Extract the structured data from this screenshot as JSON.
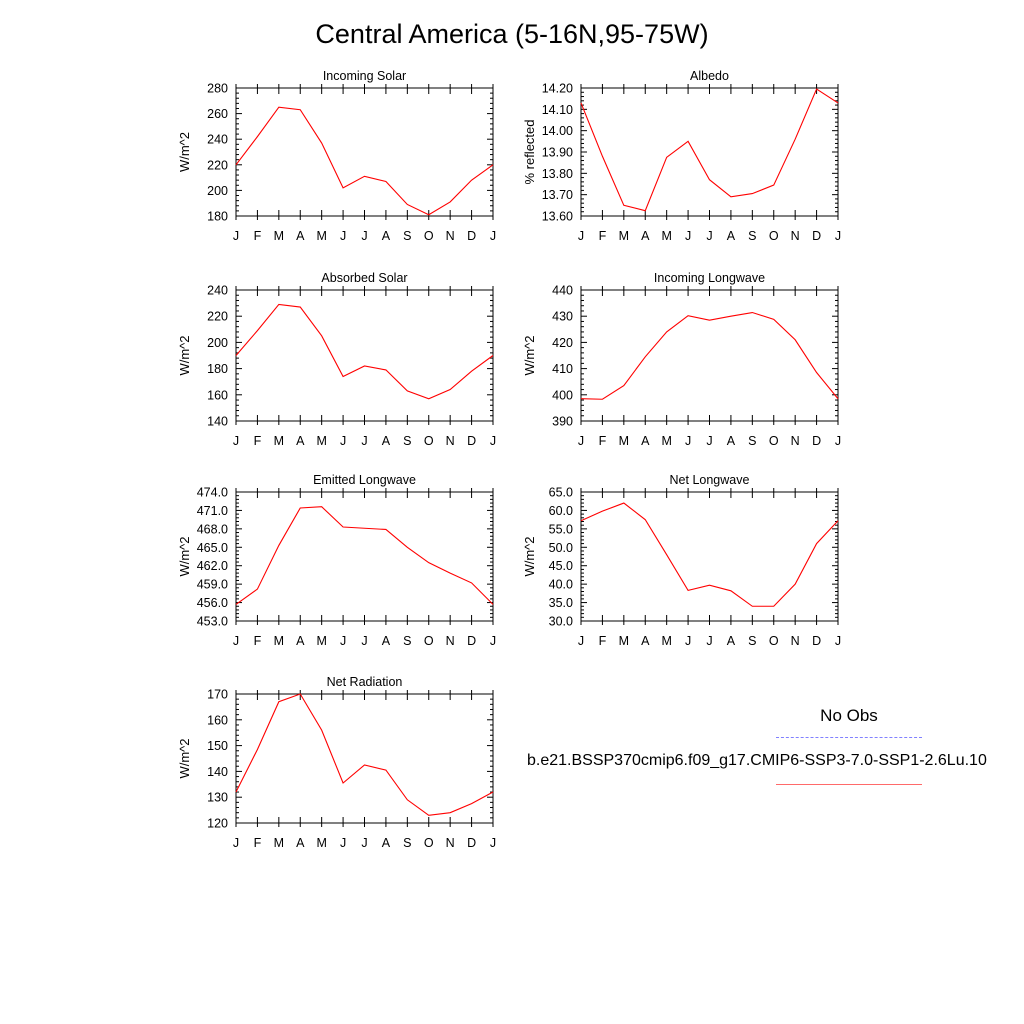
{
  "page": {
    "title": "Central America (5-16N,95-75W)"
  },
  "legend": {
    "obs_label": "No Obs",
    "obs_color": "#8080ff",
    "model_label": "b.e21.BSSP370cmip6.f09_g17.CMIP6-SSP3-7.0-SSP1-2.6Lu.10",
    "model_color": "#ff0000"
  },
  "chart_data": [
    {
      "type": "line",
      "title": "Incoming Solar",
      "ylabel": "W/m^2",
      "categories": [
        "J",
        "F",
        "M",
        "A",
        "M",
        "J",
        "J",
        "A",
        "S",
        "O",
        "N",
        "D",
        "J"
      ],
      "ylim": [
        180,
        280
      ],
      "yticks": [
        "180",
        "200",
        "220",
        "240",
        "260",
        "280"
      ],
      "series": [
        {
          "color": "#ff0000",
          "values": [
            220,
            242,
            265,
            263,
            237,
            202,
            211,
            207,
            189,
            181,
            191,
            208,
            220
          ]
        }
      ]
    },
    {
      "type": "line",
      "title": "Albedo",
      "ylabel": "% reflected",
      "categories": [
        "J",
        "F",
        "M",
        "A",
        "M",
        "J",
        "J",
        "A",
        "S",
        "O",
        "N",
        "D",
        "J"
      ],
      "ylim": [
        13.6,
        14.2
      ],
      "yticks": [
        "13.60",
        "13.70",
        "13.80",
        "13.90",
        "14.00",
        "14.10",
        "14.20"
      ],
      "series": [
        {
          "color": "#ff0000",
          "values": [
            14.13,
            13.88,
            13.65,
            13.625,
            13.875,
            13.95,
            13.77,
            13.69,
            13.705,
            13.745,
            13.96,
            14.195,
            14.13
          ]
        }
      ]
    },
    {
      "type": "line",
      "title": "Absorbed Solar",
      "ylabel": "W/m^2",
      "categories": [
        "J",
        "F",
        "M",
        "A",
        "M",
        "J",
        "J",
        "A",
        "S",
        "O",
        "N",
        "D",
        "J"
      ],
      "ylim": [
        140,
        240
      ],
      "yticks": [
        "140",
        "160",
        "180",
        "200",
        "220",
        "240"
      ],
      "series": [
        {
          "color": "#ff0000",
          "values": [
            190,
            209,
            229,
            227,
            205,
            174,
            182,
            179,
            163,
            157,
            164,
            178,
            190
          ]
        }
      ]
    },
    {
      "type": "line",
      "title": "Incoming Longwave",
      "ylabel": "W/m^2",
      "categories": [
        "J",
        "F",
        "M",
        "A",
        "M",
        "J",
        "J",
        "A",
        "S",
        "O",
        "N",
        "D",
        "J"
      ],
      "ylim": [
        390,
        440
      ],
      "yticks": [
        "390",
        "400",
        "410",
        "420",
        "430",
        "440"
      ],
      "series": [
        {
          "color": "#ff0000",
          "values": [
            398.5,
            398.3,
            403.5,
            414.5,
            424,
            430.2,
            428.5,
            430,
            431.4,
            428.8,
            421,
            408.5,
            398.5
          ]
        }
      ]
    },
    {
      "type": "line",
      "title": "Emitted Longwave",
      "ylabel": "W/m^2",
      "categories": [
        "J",
        "F",
        "M",
        "A",
        "M",
        "J",
        "J",
        "A",
        "S",
        "O",
        "N",
        "D",
        "J"
      ],
      "ylim": [
        453,
        474
      ],
      "yticks": [
        "453.0",
        "456.0",
        "459.0",
        "462.0",
        "465.0",
        "468.0",
        "471.0",
        "474.0"
      ],
      "series": [
        {
          "color": "#ff0000",
          "values": [
            455.7,
            458.2,
            465.3,
            471.4,
            471.6,
            468.3,
            468.1,
            467.9,
            465.0,
            462.5,
            460.8,
            459.2,
            455.7
          ]
        }
      ]
    },
    {
      "type": "line",
      "title": "Net Longwave",
      "ylabel": "W/m^2",
      "categories": [
        "J",
        "F",
        "M",
        "A",
        "M",
        "J",
        "J",
        "A",
        "S",
        "O",
        "N",
        "D",
        "J"
      ],
      "ylim": [
        30,
        65
      ],
      "yticks": [
        "30.0",
        "35.0",
        "40.0",
        "45.0",
        "50.0",
        "55.0",
        "60.0",
        "65.0"
      ],
      "series": [
        {
          "color": "#ff0000",
          "values": [
            57.2,
            59.8,
            62.0,
            57.5,
            48.0,
            38.3,
            39.7,
            38.2,
            34.0,
            34.0,
            40.0,
            51.0,
            57.2
          ]
        }
      ]
    },
    {
      "type": "line",
      "title": "Net Radiation",
      "ylabel": "W/m^2",
      "categories": [
        "J",
        "F",
        "M",
        "A",
        "M",
        "J",
        "J",
        "A",
        "S",
        "O",
        "N",
        "D",
        "J"
      ],
      "ylim": [
        120,
        170
      ],
      "yticks": [
        "120",
        "130",
        "140",
        "150",
        "160",
        "170"
      ],
      "series": [
        {
          "color": "#ff0000",
          "values": [
            132,
            148.5,
            167,
            170,
            156,
            135.5,
            142.5,
            140.5,
            129,
            123,
            124,
            127.5,
            132
          ]
        }
      ]
    }
  ]
}
